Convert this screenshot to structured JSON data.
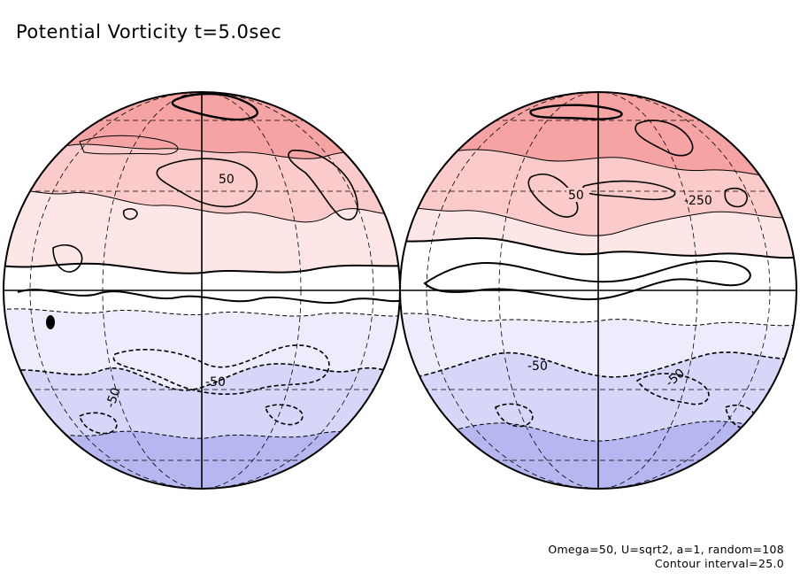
{
  "title": "Potential Vorticity t=5.0sec",
  "footer": {
    "params": "Omega=50, U=sqrt2, a=1, random=108",
    "contour": "Contour interval=25.0"
  },
  "colors": {
    "pos_strong": "#f6a3a3",
    "pos_mid": "#fbcaca",
    "pos_weak": "#fde6e6",
    "neutral": "#ffffff",
    "neg_weak": "#ececfc",
    "neg_mid": "#d6d6f8",
    "neg_strong": "#b6b6f0",
    "line": "#000000"
  },
  "labels": {
    "left_pos": "50",
    "left_neg1": "-50",
    "left_neg2": "-50",
    "right_pos1": "50",
    "right_pos2": "-250",
    "right_neg1": "-50",
    "right_neg2": "-50"
  }
}
